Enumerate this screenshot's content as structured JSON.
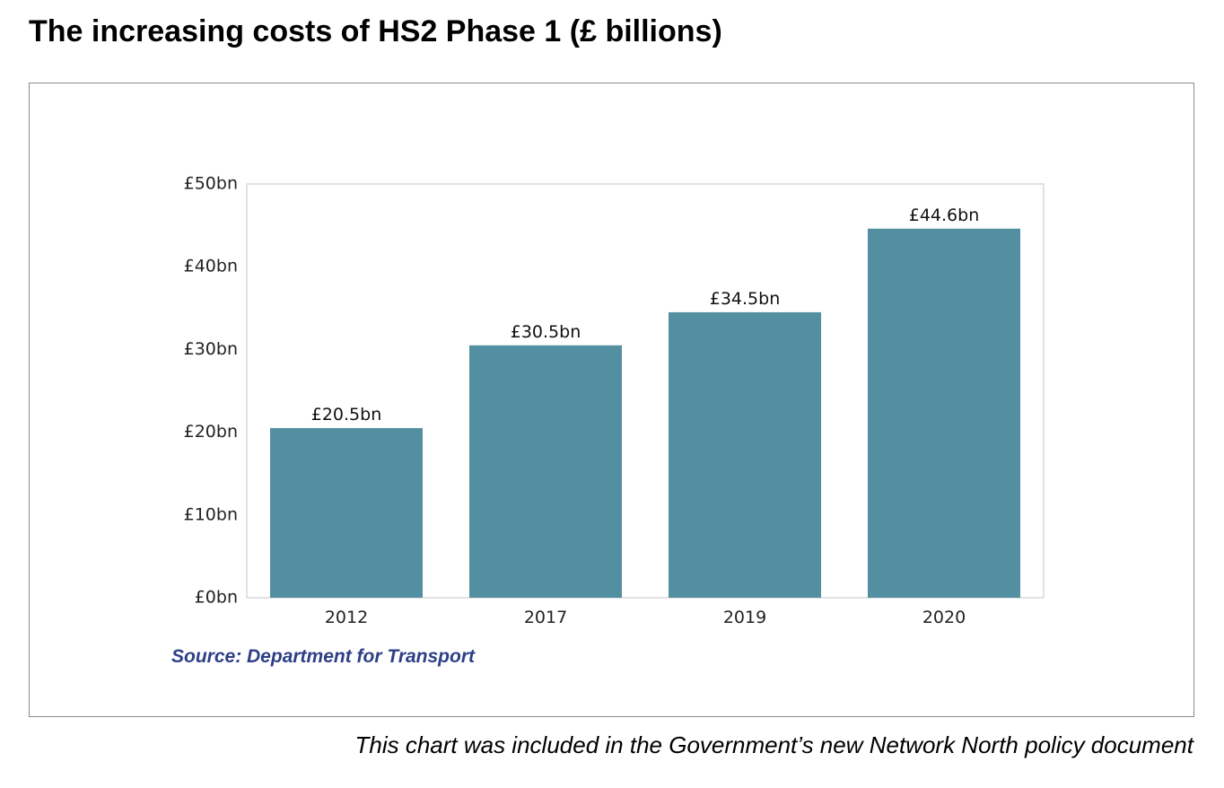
{
  "page_title": "The increasing costs of HS2 Phase 1 (£ billions)",
  "caption": "This chart was included in the Government’s new Network North policy document",
  "source_note": "Source: Department for Transport",
  "colors": {
    "bar": "#528fa1",
    "source_text": "#2e3f87",
    "plot_border": "#d9d9d9",
    "frame_border": "#8a8a8a"
  },
  "chart_data": {
    "type": "bar",
    "title": "",
    "xlabel": "",
    "ylabel": "",
    "categories": [
      "2012",
      "2017",
      "2019",
      "2020"
    ],
    "values": [
      20.5,
      30.5,
      34.5,
      44.6
    ],
    "data_labels": [
      "£20.5bn",
      "£30.5bn",
      "£34.5bn",
      "£44.6bn"
    ],
    "ylim": [
      0,
      50
    ],
    "yticks": [
      0,
      10,
      20,
      30,
      40,
      50
    ],
    "ytick_labels": [
      "£0bn",
      "£10bn",
      "£20bn",
      "£30bn",
      "£40bn",
      "£50bn"
    ],
    "grid": false,
    "legend": "none"
  }
}
